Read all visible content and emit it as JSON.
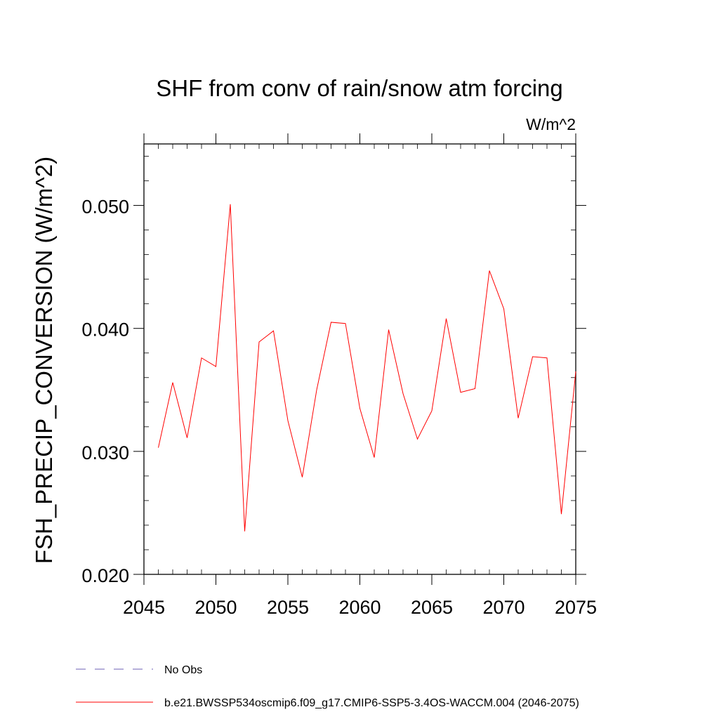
{
  "chart_data": {
    "type": "line",
    "title": "SHF from conv of rain/snow atm forcing",
    "units": "W/m^2",
    "ylabel": "FSH_PRECIP_CONVERSION  (W/m^2)",
    "xlabel": "",
    "xlim": [
      2045,
      2075
    ],
    "ylim": [
      0.02,
      0.055
    ],
    "x_ticks": [
      2045,
      2050,
      2055,
      2060,
      2065,
      2070,
      2075
    ],
    "x_tick_labels": [
      "2045",
      "2050",
      "2055",
      "2060",
      "2065",
      "2070",
      "2075"
    ],
    "y_ticks": [
      0.02,
      0.03,
      0.04,
      0.05
    ],
    "y_tick_labels": [
      "0.020",
      "0.030",
      "0.040",
      "0.050"
    ],
    "series": [
      {
        "name": "b.e21.BWSSP534oscmip6.f09_g17.CMIP6-SSP5-3.4OS-WACCM.004 (2046-2075)",
        "color": "#ff0000",
        "x": [
          2046,
          2047,
          2048,
          2049,
          2050,
          2051,
          2052,
          2053,
          2054,
          2055,
          2056,
          2057,
          2058,
          2059,
          2060,
          2061,
          2062,
          2063,
          2064,
          2065,
          2066,
          2067,
          2068,
          2069,
          2070,
          2071,
          2072,
          2073,
          2074,
          2075
        ],
        "values": [
          0.0303,
          0.0356,
          0.0311,
          0.0376,
          0.0369,
          0.0501,
          0.0235,
          0.0389,
          0.0398,
          0.0325,
          0.0279,
          0.035,
          0.0405,
          0.0404,
          0.0335,
          0.0295,
          0.0399,
          0.0347,
          0.031,
          0.0333,
          0.0408,
          0.0348,
          0.0351,
          0.0447,
          0.0416,
          0.0327,
          0.0377,
          0.0376,
          0.0249,
          0.0365
        ]
      }
    ],
    "legend": [
      {
        "label": "No Obs",
        "style": "dashed",
        "color": "#6b5fb5"
      },
      {
        "label": "b.e21.BWSSP534oscmip6.f09_g17.CMIP6-SSP5-3.4OS-WACCM.004 (2046-2075)",
        "style": "solid",
        "color": "#ff0000"
      }
    ],
    "legend_position": "bottom",
    "grid": false
  }
}
